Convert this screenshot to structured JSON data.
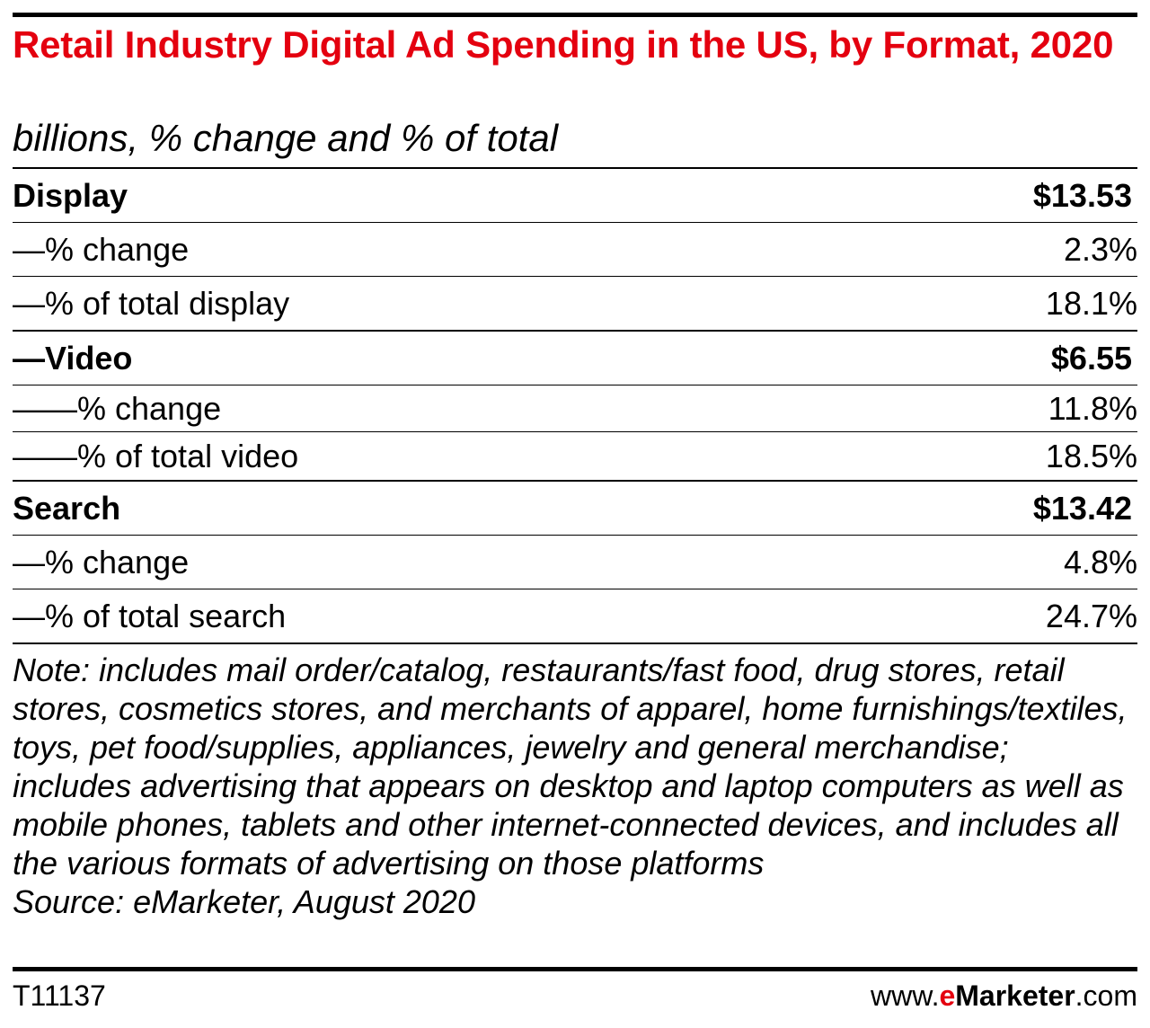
{
  "title": "Retail Industry Digital Ad Spending in the US, by Format, 2020",
  "subtitle": "billions, % change and % of total",
  "chart_data": {
    "type": "table",
    "title": "Retail Industry Digital Ad Spending in the US, by Format, 2020",
    "subtitle": "billions, % change and % of total",
    "rows": [
      {
        "label": "Display",
        "value": "$13.53",
        "bold": true
      },
      {
        "label": "—% change",
        "value": "2.3%",
        "bold": false
      },
      {
        "label": "—% of total display",
        "value": "18.1%",
        "bold": false
      },
      {
        "label": "—Video",
        "value": "$6.55",
        "bold": true
      },
      {
        "label": "——% change",
        "value": "11.8%",
        "bold": false
      },
      {
        "label": "——% of total video",
        "value": "18.5%",
        "bold": false
      },
      {
        "label": "Search",
        "value": "$13.42",
        "bold": true
      },
      {
        "label": "—% change",
        "value": "4.8%",
        "bold": false
      },
      {
        "label": "—% of total search",
        "value": "24.7%",
        "bold": false
      }
    ]
  },
  "note": "Note: includes mail order/catalog, restaurants/fast food, drug stores, retail stores, cosmetics stores, and merchants of apparel, home furnishings/textiles, toys, pet food/supplies, appliances, jewelry and general merchandise; includes advertising that appears on desktop and laptop computers as well as mobile phones, tablets and other internet-connected devices, and includes all the various formats of advertising on those platforms",
  "source": "Source: eMarketer, August 2020",
  "chart_id": "T11137",
  "brand": {
    "prefix": "www.",
    "e": "e",
    "name": "Marketer",
    "suffix": ".com"
  },
  "colors": {
    "title": "#e4000f",
    "brand_accent": "#e4000f",
    "text": "#000000"
  }
}
